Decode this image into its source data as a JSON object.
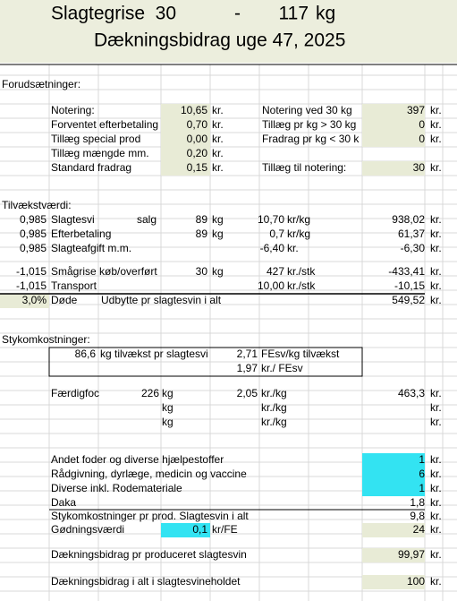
{
  "header": {
    "line1": [
      "Slagtegrise",
      "30",
      "-",
      "117",
      "kg"
    ],
    "line2": "Dækningsbidrag uge 47, 2025"
  },
  "rows": [
    [
      "Forudsætninger:"
    ],
    [
      "Notering:",
      "10,65",
      "kr.",
      "Notering ved 30 kg",
      "397",
      "kr."
    ],
    [
      "Forventet efterbetaling",
      "0,70",
      "kr.",
      "Tillæg pr kg > 30 kg",
      "0",
      "kr."
    ],
    [
      "Tillæg special prod",
      "0,00",
      "kr.",
      "Fradrag pr kg < 30 k",
      "0",
      "kr."
    ],
    [
      "Tillæg mængde mm.",
      "0,20",
      "kr."
    ],
    [
      "Standard fradrag",
      "0,15",
      "kr.",
      "Tillæg til notering:",
      "30",
      "kr."
    ],
    [
      "Tilvækstværdi:"
    ],
    [
      "0,985",
      "Slagtesvi",
      "salg",
      "89",
      "kg",
      "10,70",
      "kr/kg",
      "938,02",
      "kr."
    ],
    [
      "0,985",
      "Efterbetaling",
      "89",
      "kg",
      "0,7",
      "kr/kg",
      "61,37",
      "kr."
    ],
    [
      "0,985",
      "Slagteafgift m.m.",
      "-6,40",
      "kr.",
      "-6,30",
      "kr."
    ],
    [
      "-1,015",
      "Smågrise køb/overført",
      "30",
      "kg",
      "427",
      "kr./stk",
      "-433,41",
      "kr."
    ],
    [
      "-1,015",
      "Transport",
      "10,00",
      "kr./stk",
      "-10,15",
      "kr."
    ],
    [
      "3,0%",
      "Døde",
      "Udbytte pr slagtesvin i alt",
      "549,52",
      "kr."
    ],
    [
      "Stykomkostninger:"
    ],
    [
      "86,6",
      "kg tilvækst pr slagtesvi",
      "2,71",
      "FEsv/kg tilvækst"
    ],
    [
      "1,97",
      "kr./ FEsv"
    ],
    [
      "Færdigfoc",
      "226",
      "kg",
      "2,05",
      "kr./kg",
      "463,3",
      "kr."
    ],
    [
      "kg",
      "kr./kg",
      "kr."
    ],
    [
      "kg",
      "kr./kg",
      "kr."
    ],
    [
      "Andet foder og diverse hjælpestoffer",
      "1",
      "kr."
    ],
    [
      "Rådgivning, dyrlæge, medicin og vaccine",
      "6",
      "kr."
    ],
    [
      "Diverse inkl. Rodemateriale",
      "1",
      "kr."
    ],
    [
      "Daka",
      "1,8",
      "kr."
    ],
    [
      "Stykomkostninger pr prod. Slagtesvin i alt",
      "9,8",
      "kr."
    ],
    [
      "Gødningsværdi",
      "0,1",
      "kr/FE",
      "24",
      "kr."
    ],
    [
      "Dækningsbidrag pr produceret slagtesvin",
      "99,97",
      "kr."
    ],
    [
      "Dækningsbidrag i alt i slagtesvineholdet",
      "100",
      "kr."
    ]
  ]
}
